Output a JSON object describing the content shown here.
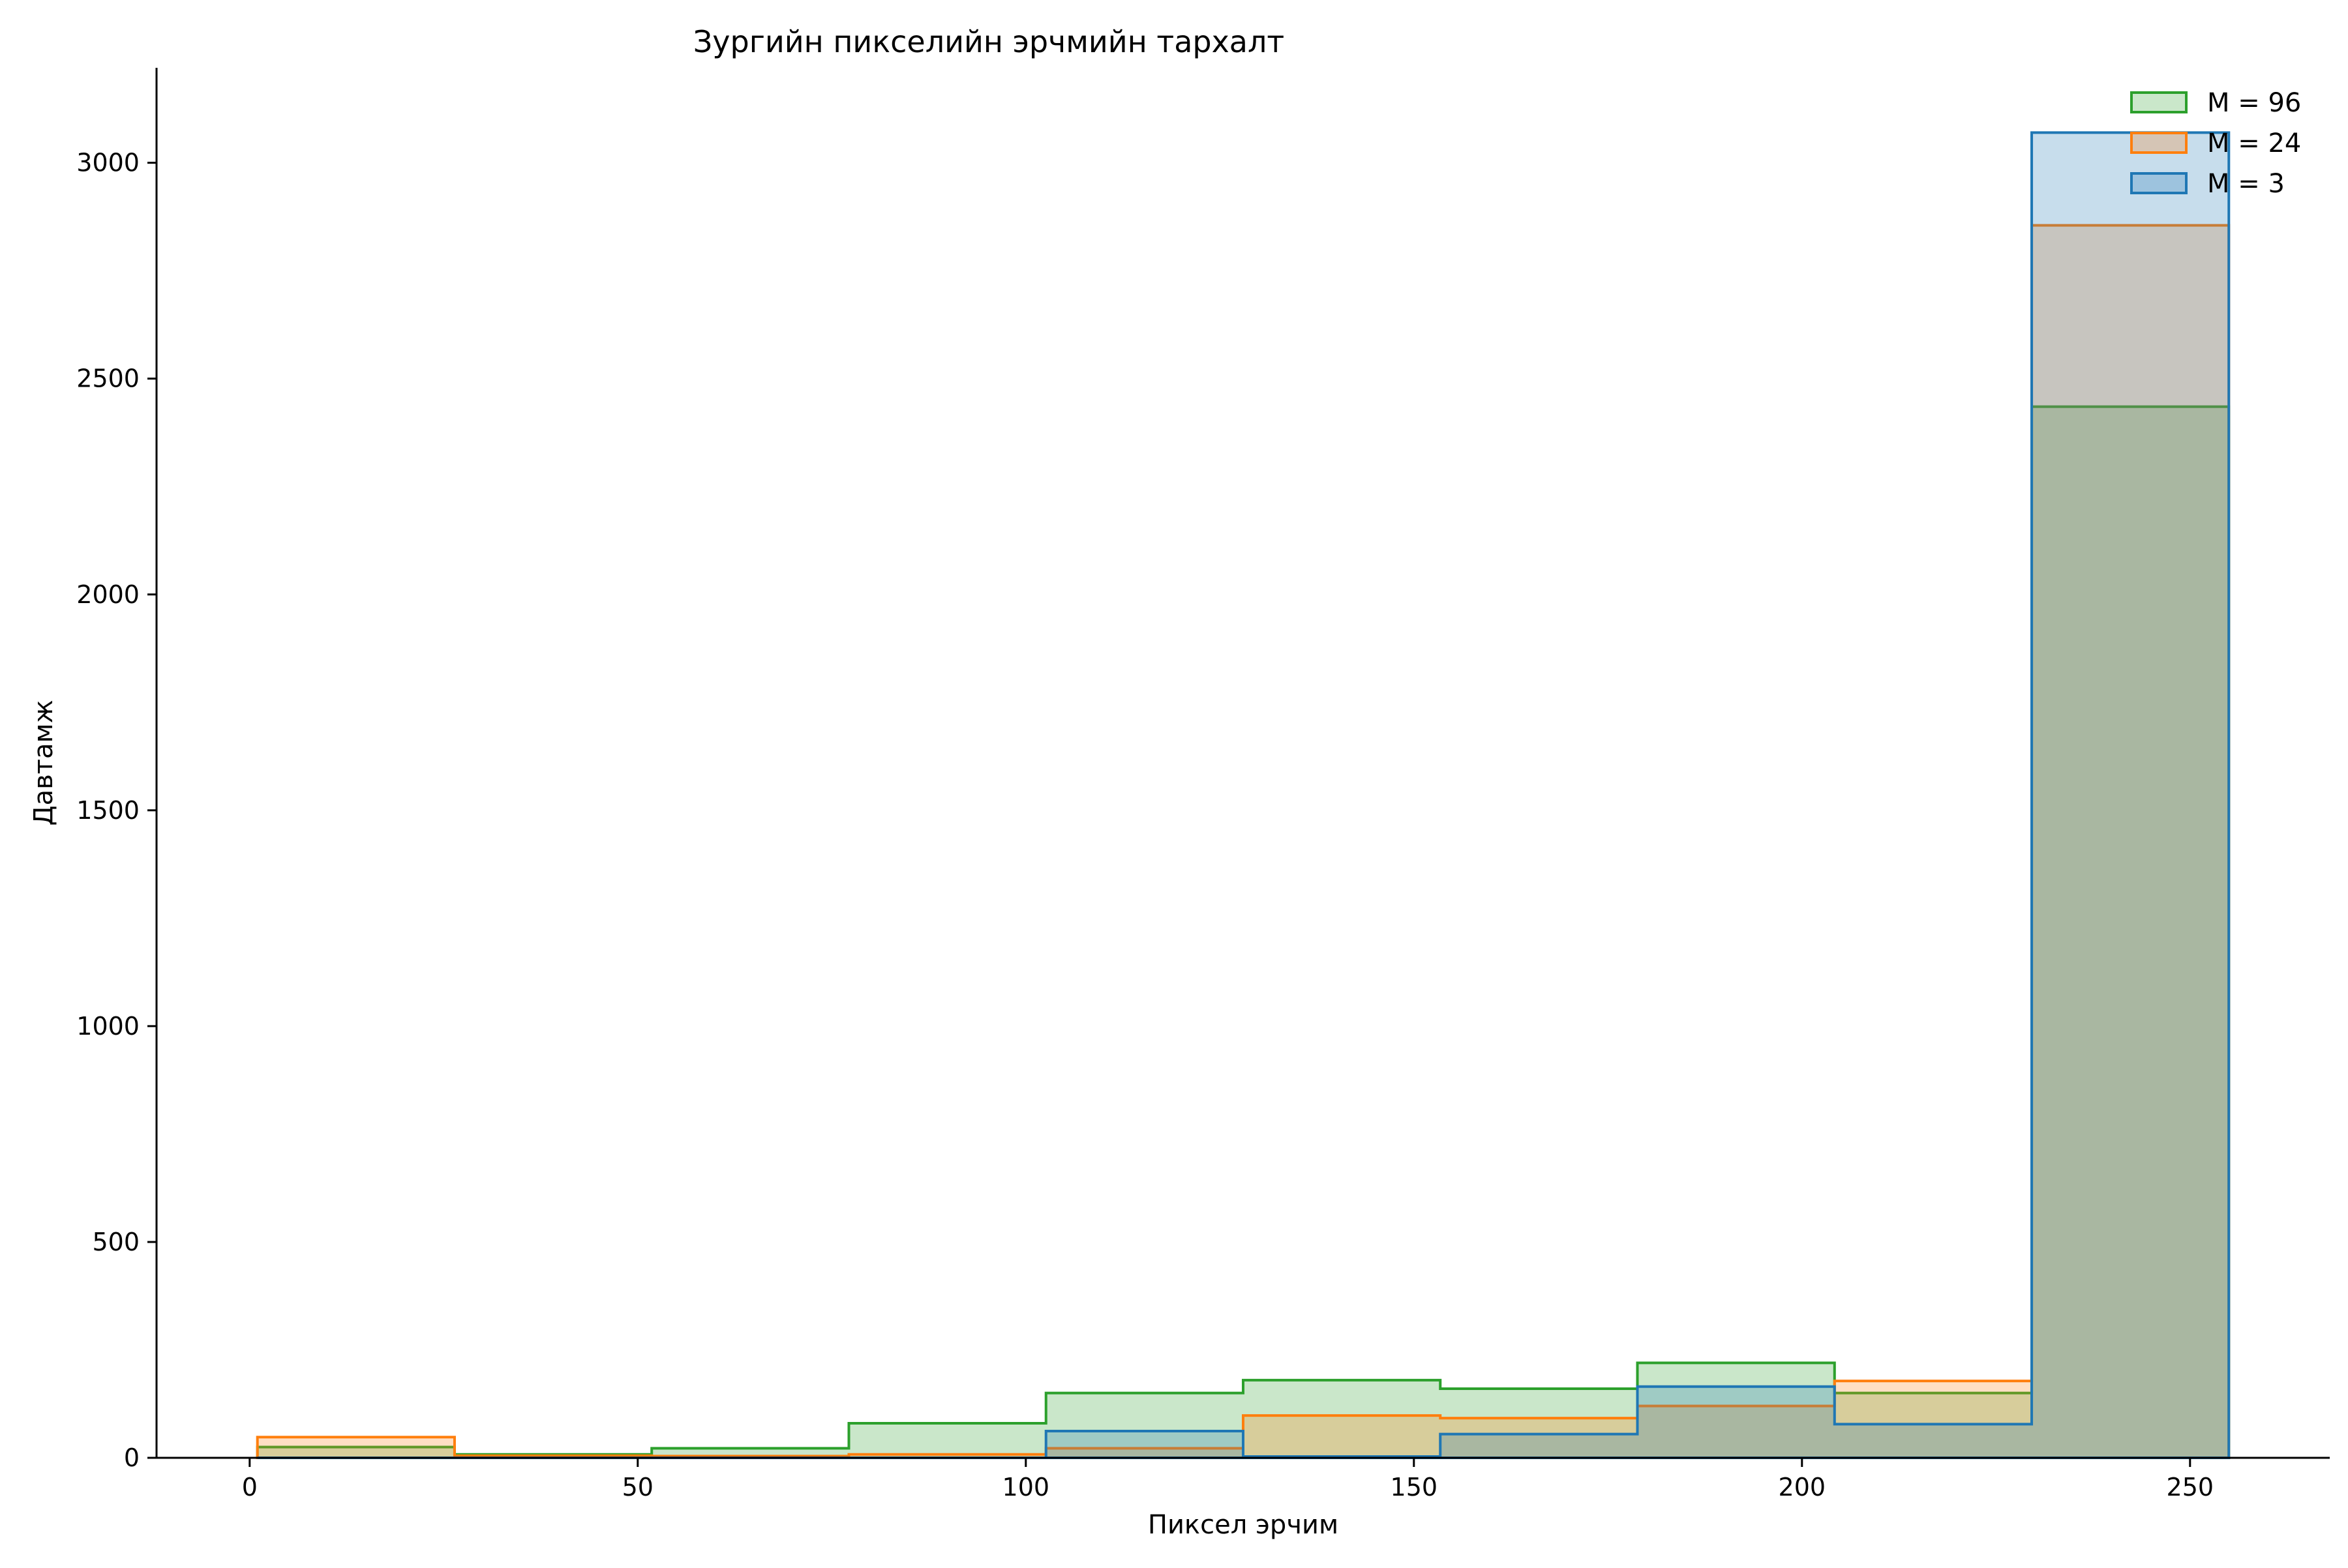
{
  "chart_data": {
    "type": "area",
    "title": "Зургийн пикселийн эрчмийн тархалт",
    "xlabel": "Пиксел эрчим",
    "ylabel": "Давтамж",
    "xlim": [
      -12,
      268
    ],
    "ylim": [
      0,
      3220
    ],
    "xticks": [
      0,
      50,
      100,
      150,
      200,
      250
    ],
    "yticks": [
      0,
      500,
      1000,
      1500,
      2000,
      2500,
      3000
    ],
    "bin_edges": [
      1,
      26.4,
      51.8,
      77.2,
      102.6,
      128,
      153.4,
      178.8,
      204.2,
      229.6,
      255
    ],
    "grid": false,
    "legend_position": "top-right",
    "series": [
      {
        "name": "M = 96",
        "color": "#2ca02c",
        "values": [
          25,
          8,
          22,
          80,
          150,
          180,
          160,
          220,
          150,
          2435
        ]
      },
      {
        "name": "M = 24",
        "color": "#ff7f0e",
        "values": [
          48,
          5,
          4,
          8,
          22,
          98,
          92,
          120,
          178,
          2855
        ]
      },
      {
        "name": "M = 3",
        "color": "#1f77b4",
        "values": [
          0,
          0,
          0,
          0,
          62,
          3,
          55,
          165,
          78,
          3070
        ]
      }
    ]
  }
}
